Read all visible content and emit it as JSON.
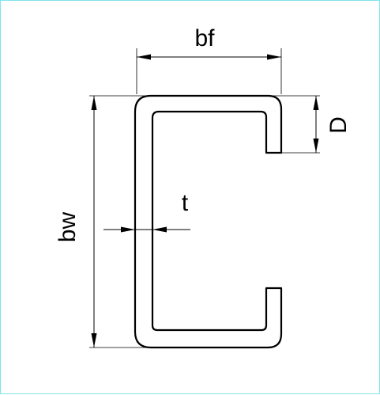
{
  "diagram": {
    "labels": {
      "flange_width": "bf",
      "web_depth": "bw",
      "lip_depth": "D",
      "thickness": "t"
    },
    "colors": {
      "frame": "#7fe3ec",
      "lines": "#000000",
      "background": "#ffffff"
    }
  }
}
